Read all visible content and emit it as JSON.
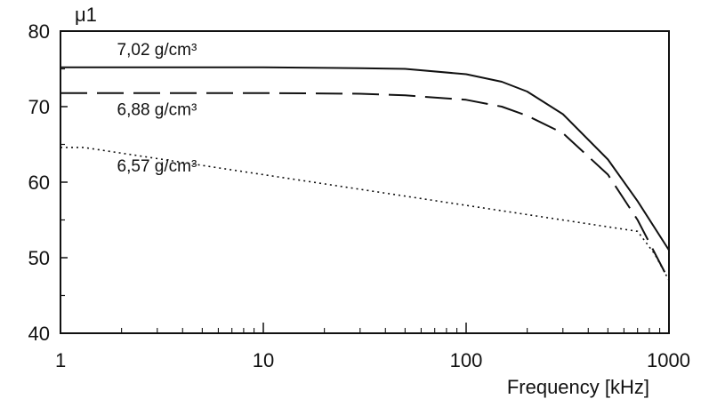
{
  "chart_data": {
    "type": "line",
    "title": "",
    "xlabel": "Frequency [kHz]",
    "ylabel": "μ1",
    "x_scale": "log",
    "xlim": [
      1,
      1000
    ],
    "ylim": [
      40,
      80
    ],
    "x_ticks": [
      1,
      10,
      100,
      1000
    ],
    "x_tick_labels": [
      "1",
      "10",
      "100",
      "1000"
    ],
    "y_ticks": [
      40,
      50,
      60,
      70,
      80
    ],
    "y_tick_labels": [
      "40",
      "50",
      "60",
      "70",
      "80"
    ],
    "grid": false,
    "series": [
      {
        "name": "7,02 g/cm³",
        "style": "solid",
        "x": [
          1,
          10,
          30,
          50,
          100,
          150,
          200,
          300,
          500,
          700,
          1000
        ],
        "y": [
          75.2,
          75.2,
          75.1,
          75.0,
          74.3,
          73.3,
          72.0,
          69.0,
          63.0,
          57.5,
          51.0
        ]
      },
      {
        "name": "6,88 g/cm³",
        "style": "dashed",
        "x": [
          1,
          10,
          30,
          50,
          100,
          150,
          200,
          300,
          500,
          700,
          1000
        ],
        "y": [
          71.8,
          71.8,
          71.7,
          71.5,
          70.9,
          70.0,
          68.8,
          66.5,
          61.0,
          55.0,
          47.0
        ]
      },
      {
        "name": "6,57 g/cm³",
        "style": "dotted",
        "x": [
          1,
          1.3,
          700,
          850,
          1000
        ],
        "y": [
          64.6,
          64.6,
          53.5,
          50.5,
          47.0
        ]
      }
    ],
    "annotations": [
      {
        "text": "7,02 g/cm³",
        "x": 1.9,
        "y": 76.8
      },
      {
        "text": "6,88 g/cm³",
        "x": 1.9,
        "y": 68.9
      },
      {
        "text": "6,57 g/cm³",
        "x": 1.9,
        "y": 61.4
      }
    ]
  }
}
